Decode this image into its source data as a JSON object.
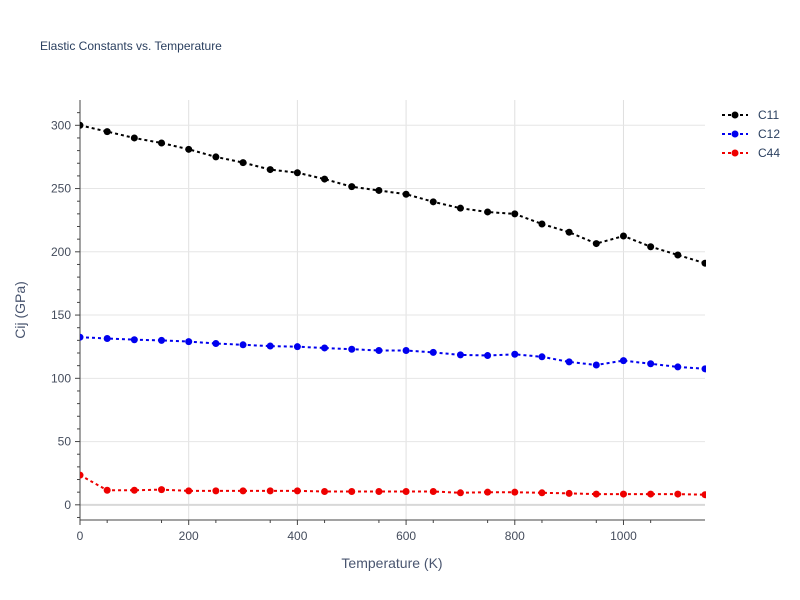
{
  "chart_data": {
    "type": "line",
    "title": "Elastic Constants vs. Temperature",
    "xlabel": "Temperature (K)",
    "ylabel": "Cij (GPa)",
    "xlim": [
      0,
      1150
    ],
    "ylim": [
      -12,
      320
    ],
    "xticks": [
      0,
      200,
      400,
      600,
      800,
      1000
    ],
    "yticks": [
      0,
      50,
      100,
      150,
      200,
      250,
      300
    ],
    "grid": true,
    "legend_position": "top-right",
    "x": [
      0,
      50,
      100,
      150,
      200,
      250,
      300,
      350,
      400,
      450,
      500,
      550,
      600,
      650,
      700,
      750,
      800,
      850,
      900,
      950,
      1000,
      1050,
      1100,
      1150
    ],
    "series": [
      {
        "name": "C11",
        "color": "#000000",
        "values": [
          300,
          295,
          290,
          286,
          281,
          275,
          270.5,
          265,
          262.5,
          257.5,
          251.5,
          248.5,
          245.5,
          239.5,
          234.5,
          231.5,
          230,
          222,
          215.5,
          206.5,
          212.5,
          204,
          197.5,
          191
        ]
      },
      {
        "name": "C12",
        "color": "#0000ee",
        "values": [
          132.5,
          131.5,
          130.5,
          130,
          129,
          127.5,
          126.5,
          125.5,
          125,
          124,
          123,
          122,
          122,
          120.5,
          118.5,
          118,
          119,
          117,
          113,
          110.5,
          114,
          111.5,
          109,
          107.5
        ]
      },
      {
        "name": "C44",
        "color": "#ee0000",
        "values": [
          23.5,
          11.5,
          11.5,
          12,
          11,
          11,
          11,
          11,
          11,
          10.5,
          10.5,
          10.5,
          10.5,
          10.5,
          9.5,
          10,
          10,
          9.5,
          9,
          8.5,
          8.5,
          8.5,
          8.5,
          8
        ]
      }
    ]
  }
}
